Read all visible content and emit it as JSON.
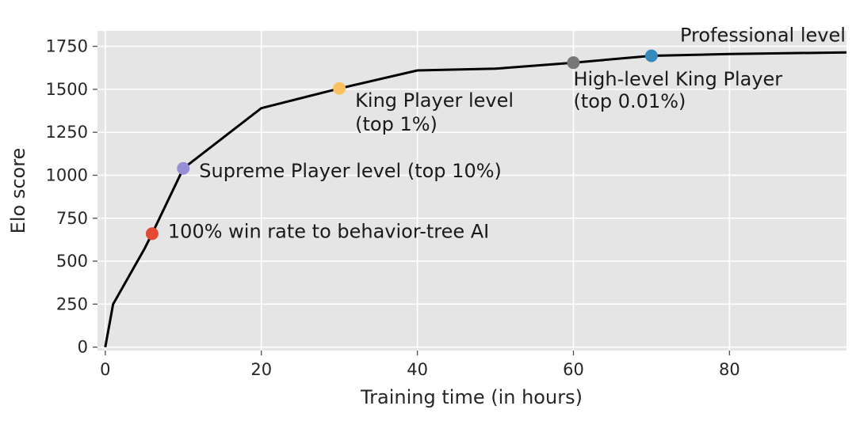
{
  "chart_data": {
    "type": "line",
    "title": "",
    "xlabel": "Training time (in hours)",
    "ylabel": "Elo score",
    "xlim": [
      -1,
      95
    ],
    "ylim": [
      -20,
      1840
    ],
    "xticks": [
      0,
      20,
      40,
      60,
      80
    ],
    "yticks": [
      0,
      250,
      500,
      750,
      1000,
      1250,
      1500,
      1750
    ],
    "grid": true,
    "background_color": "#e5e5e5",
    "line_color": "#000000",
    "series": [
      {
        "x": [
          0,
          1,
          5,
          6,
          10,
          20,
          30,
          40,
          50,
          60,
          70,
          80,
          95
        ],
        "y": [
          0,
          250,
          570,
          660,
          1040,
          1390,
          1505,
          1610,
          1620,
          1655,
          1695,
          1705,
          1715
        ]
      }
    ],
    "markers": [
      {
        "x": 6,
        "y": 660,
        "color": "#e24a33",
        "label": "100% win rate to behavior-tree AI"
      },
      {
        "x": 10,
        "y": 1040,
        "color": "#988ed5",
        "label": "Supreme Player level (top 10%)"
      },
      {
        "x": 30,
        "y": 1505,
        "color": "#fbc15e",
        "label": "King Player level",
        "label2": "(top 1%)"
      },
      {
        "x": 60,
        "y": 1655,
        "color": "#777777",
        "label": "High-level King Player",
        "label2": "(top 0.01%)"
      },
      {
        "x": 70,
        "y": 1695,
        "color": "#348abd",
        "label": "Professional level"
      }
    ]
  }
}
